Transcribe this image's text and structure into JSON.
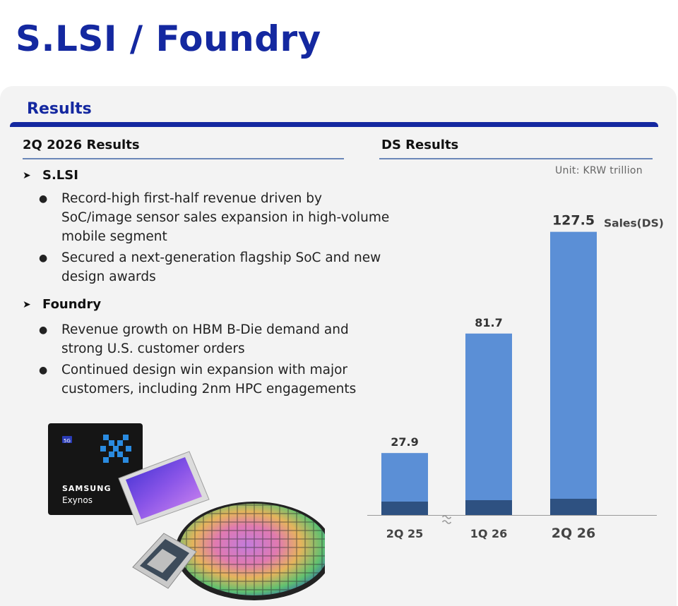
{
  "page": {
    "title": "S.LSI / Foundry",
    "section_title": "Results"
  },
  "left": {
    "heading": "2Q 2026 Results",
    "groups": [
      {
        "label": "S.LSI",
        "bullets": [
          "Record-high first-half revenue driven by SoC/image sensor sales expansion in high-volume mobile segment",
          "Secured a next-generation flagship SoC and new design awards"
        ]
      },
      {
        "label": "Foundry",
        "bullets": [
          "Revenue growth on HBM B-Die demand and strong U.S. customer orders",
          "Continued design win expansion with major customers, including 2nm HPC engagements"
        ]
      }
    ],
    "illustration": {
      "chip_badge": "5G",
      "chip_brand": "SAMSUNG",
      "chip_name": "Exynos"
    }
  },
  "right": {
    "heading": "DS Results",
    "unit": "Unit:  KRW trillion"
  },
  "colors": {
    "brand_blue": "#1428a0",
    "bar_blue": "#5b8fd6",
    "bar_dark": "#2e5181"
  },
  "chart_data": {
    "type": "bar",
    "categories": [
      "2Q 25",
      "1Q 26",
      "2Q 26"
    ],
    "series": [
      {
        "name": "Sales(DS)",
        "values": [
          27.9,
          81.7,
          127.5
        ]
      }
    ],
    "title": "",
    "xlabel": "",
    "ylabel": "",
    "ylim": [
      0,
      135
    ],
    "axis_break_after_index": 0,
    "legend": "label next to last bar",
    "grid": false
  }
}
